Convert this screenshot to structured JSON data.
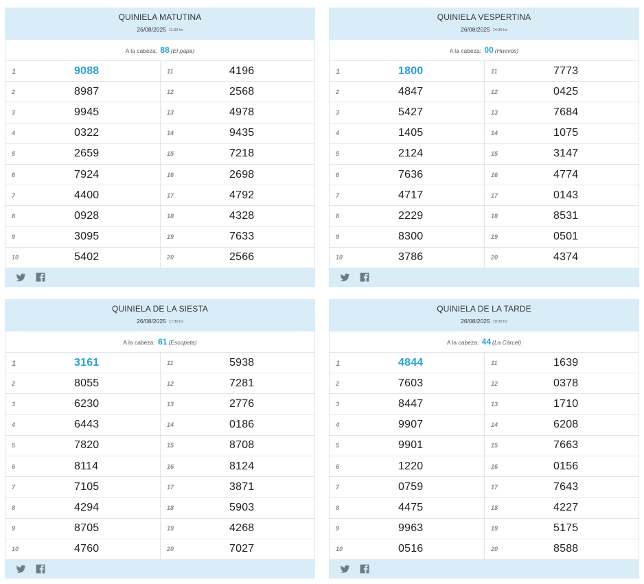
{
  "cabeza_label": "A la cabeza:",
  "time_suffix": "hs",
  "cards": [
    {
      "title": "QUINIELA MATUTINA",
      "date": "26/08/2025",
      "time": "11:30",
      "cabeza_num": "88",
      "cabeza_name": "(El papa)",
      "results": [
        "9088",
        "8987",
        "9945",
        "0322",
        "2659",
        "7924",
        "4400",
        "0928",
        "3095",
        "5402",
        "4196",
        "2568",
        "4978",
        "9435",
        "7218",
        "2698",
        "4792",
        "4328",
        "7633",
        "2566"
      ]
    },
    {
      "title": "QUINIELA VESPERTINA",
      "date": "26/08/2025",
      "time": "14:30",
      "cabeza_num": "00",
      "cabeza_name": "(Huevos)",
      "results": [
        "1800",
        "4847",
        "5427",
        "1405",
        "2124",
        "7636",
        "4717",
        "2229",
        "8300",
        "3786",
        "7773",
        "0425",
        "7684",
        "1075",
        "3147",
        "4774",
        "0143",
        "8531",
        "0501",
        "4374"
      ]
    },
    {
      "title": "QUINIELA DE LA SIESTA",
      "date": "26/08/2025",
      "time": "17:30",
      "cabeza_num": "61",
      "cabeza_name": "(Escopeta)",
      "results": [
        "3161",
        "8055",
        "6230",
        "6443",
        "7820",
        "8114",
        "7105",
        "4294",
        "8705",
        "4760",
        "5938",
        "7281",
        "2776",
        "0186",
        "8708",
        "8124",
        "3871",
        "5903",
        "4268",
        "7027"
      ]
    },
    {
      "title": "QUINIELA DE LA TARDE",
      "date": "26/08/2025",
      "time": "19:30",
      "cabeza_num": "44",
      "cabeza_name": "(La Cárcel)",
      "results": [
        "4844",
        "7603",
        "8447",
        "9907",
        "9901",
        "1220",
        "0759",
        "4475",
        "9963",
        "0516",
        "1639",
        "0378",
        "1710",
        "6208",
        "7663",
        "0156",
        "7643",
        "4227",
        "5175",
        "8588"
      ]
    }
  ],
  "icons": {
    "twitter": "twitter-icon",
    "facebook": "facebook-icon"
  },
  "colors": {
    "header_bg": "#d9edf8",
    "accent": "#2aa0d2"
  }
}
